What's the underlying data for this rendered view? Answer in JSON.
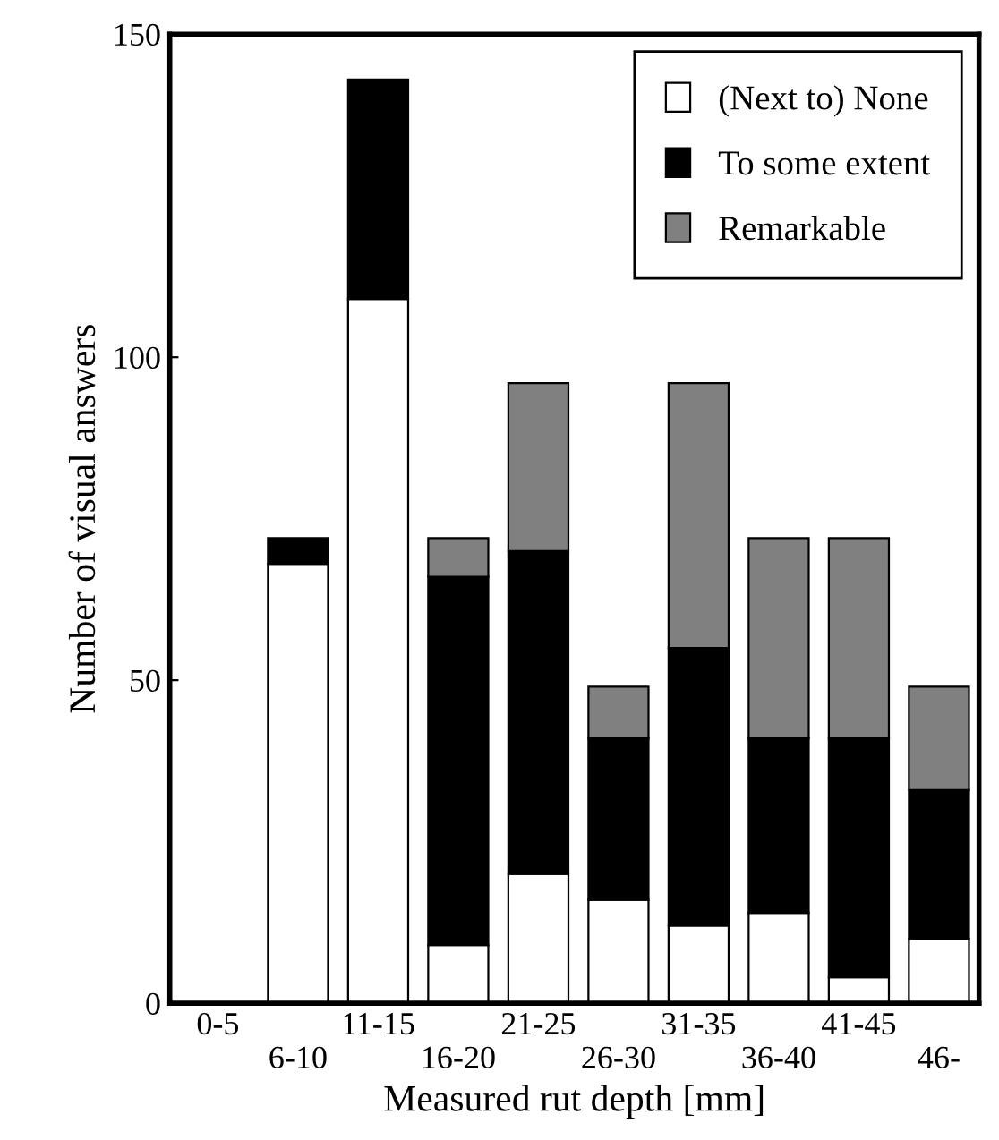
{
  "chart_data": {
    "type": "bar",
    "stacked": true,
    "xlabel": "Measured rut depth [mm]",
    "ylabel": "Number of visual answers",
    "categories": [
      "0-5",
      "6-10",
      "11-15",
      "16-20",
      "21-25",
      "26-30",
      "31-35",
      "36-40",
      "41-45",
      "46-"
    ],
    "series": [
      {
        "name": "(Next to) None",
        "color": "#ffffff",
        "values": [
          0,
          68,
          109,
          9,
          20,
          16,
          12,
          14,
          4,
          10
        ]
      },
      {
        "name": "To some extent",
        "color": "#000000",
        "values": [
          0,
          4,
          34,
          57,
          50,
          25,
          43,
          27,
          37,
          23
        ]
      },
      {
        "name": "Remarkable",
        "color": "#808080",
        "values": [
          0,
          0,
          0,
          6,
          26,
          8,
          41,
          31,
          31,
          16
        ]
      }
    ],
    "ylim": [
      0,
      150
    ],
    "yticks": [
      0,
      50,
      100,
      150
    ],
    "grid": false,
    "legend": "top right"
  }
}
